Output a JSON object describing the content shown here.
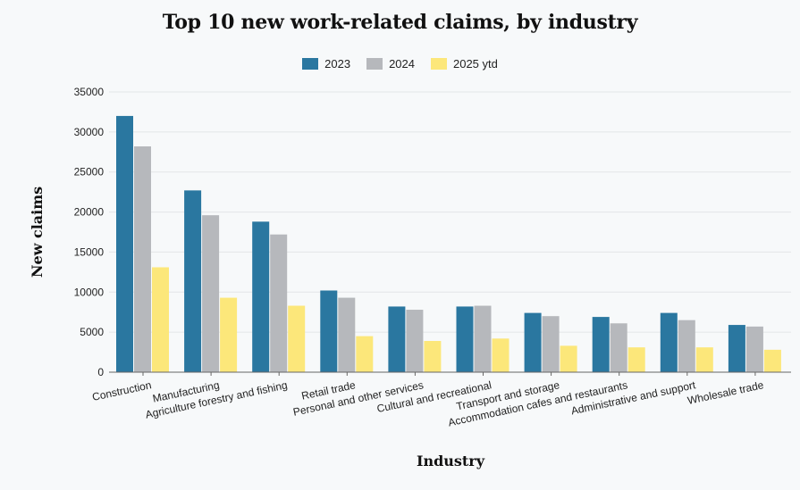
{
  "chart_data": {
    "type": "bar",
    "title": "Top 10 new work-related claims, by industry",
    "xlabel": "Industry",
    "ylabel": "New claims",
    "ylim": [
      0,
      35000
    ],
    "yticks": [
      0,
      5000,
      10000,
      15000,
      20000,
      25000,
      30000,
      35000
    ],
    "grid": true,
    "legend_position": "top-center",
    "categories": [
      "Construction",
      "Manufacturing",
      "Agriculture forestry and fishing",
      "Retail trade",
      "Personal and other services",
      "Cultural and recreational",
      "Transport and storage",
      "Accommodation cafes and restaurants",
      "Administrative and support",
      "Wholesale trade"
    ],
    "series": [
      {
        "name": "2023",
        "color": "#2a77a0",
        "values": [
          32000,
          22700,
          18800,
          10200,
          8200,
          8200,
          7400,
          6900,
          7400,
          5900
        ]
      },
      {
        "name": "2024",
        "color": "#b6b8bc",
        "values": [
          28200,
          19600,
          17200,
          9300,
          7800,
          8300,
          7000,
          6100,
          6500,
          5700
        ]
      },
      {
        "name": "2025 ytd",
        "color": "#fce77a",
        "values": [
          13100,
          9300,
          8300,
          4500,
          3900,
          4200,
          3300,
          3100,
          3100,
          2800
        ]
      }
    ]
  }
}
